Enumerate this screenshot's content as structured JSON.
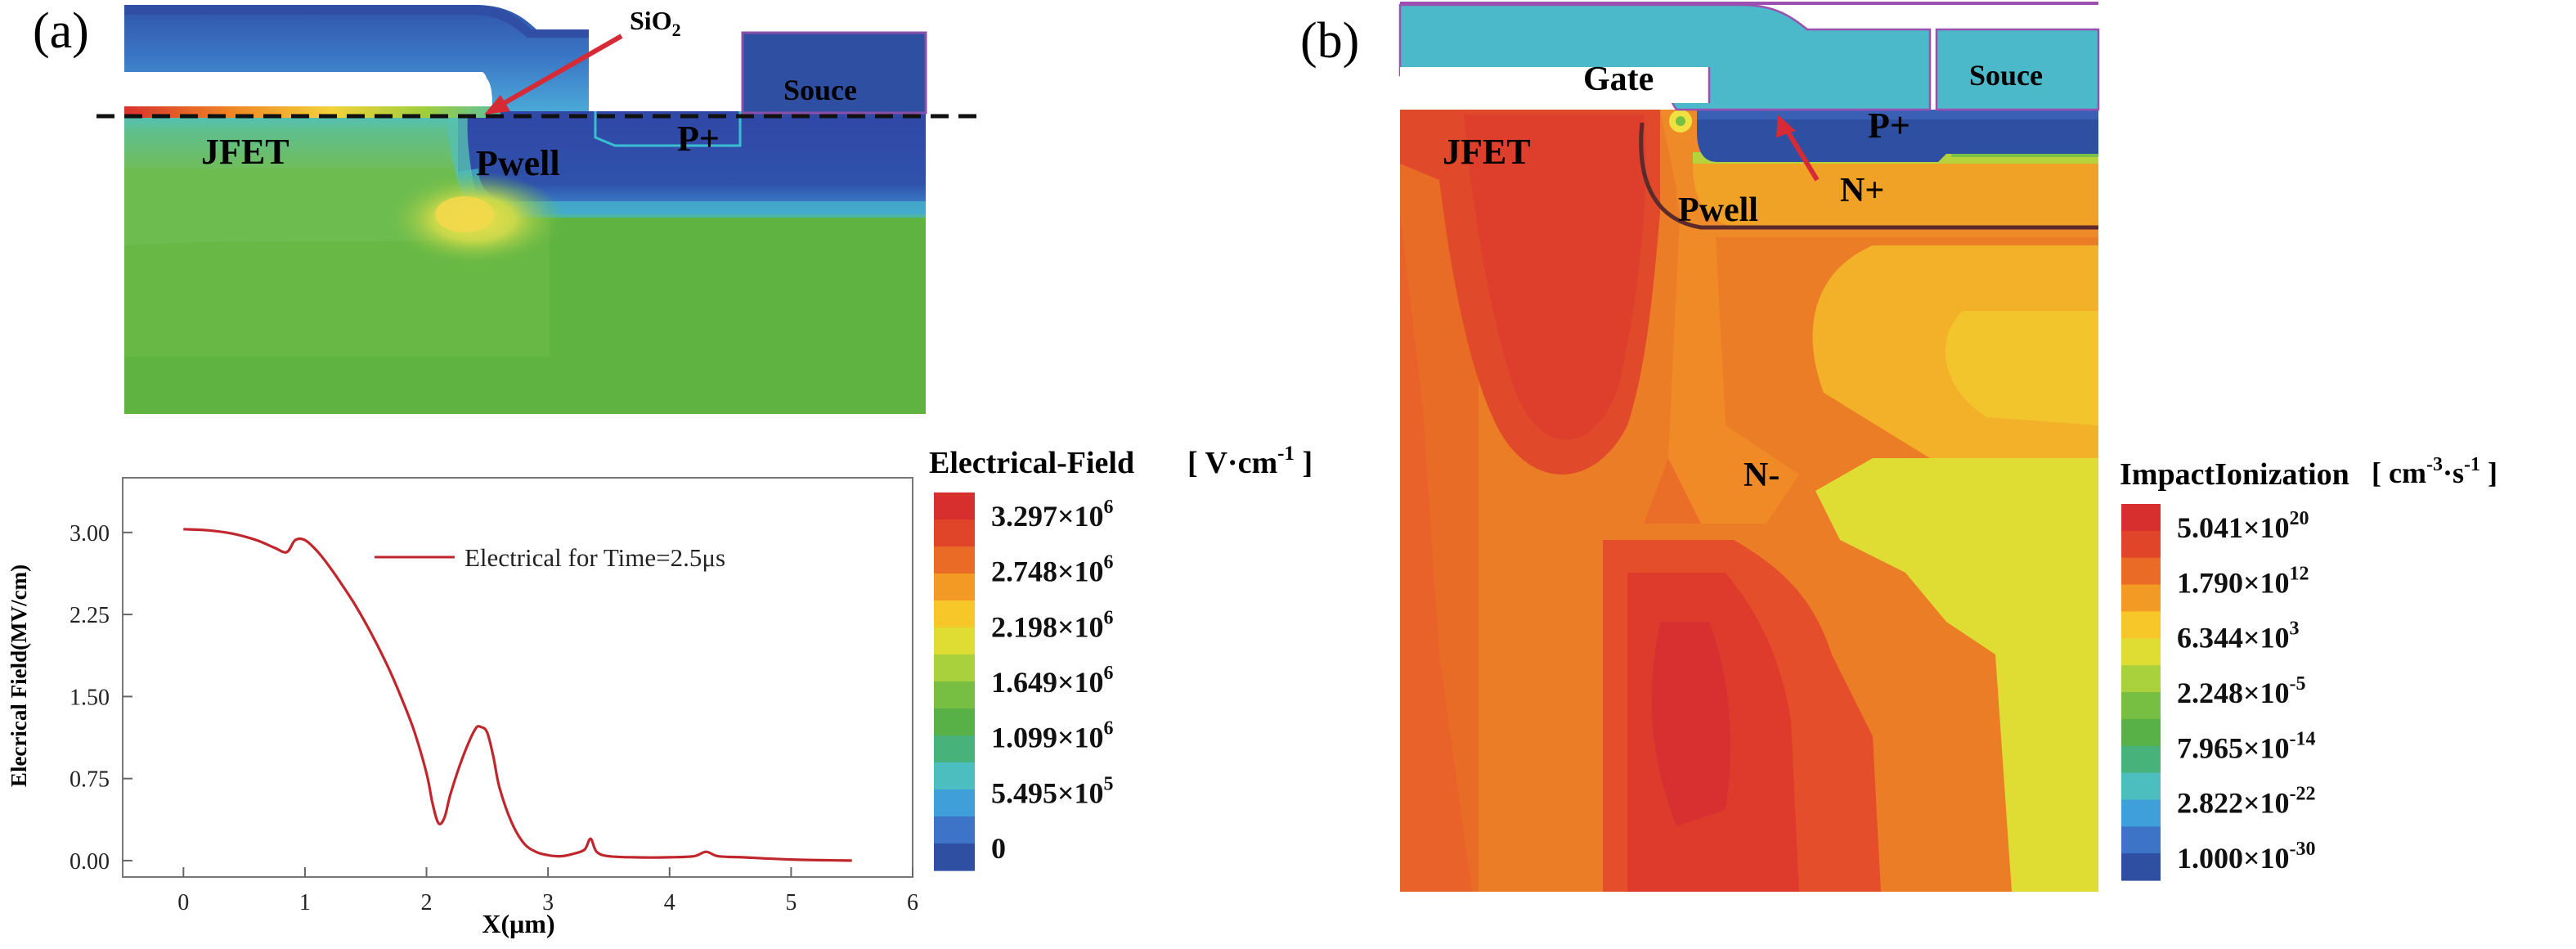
{
  "panel_a": {
    "label": "(a)",
    "regions": {
      "jfet": "JFET",
      "pwell": "Pwell",
      "pplus": "P+",
      "source": "Souce"
    },
    "callout": {
      "base": "SiO",
      "sub": "2"
    },
    "colorbar": {
      "title": "Electrical-Field",
      "unit_prefix": "[ V·cm",
      "unit_exp": "-1",
      "unit_suffix": " ]",
      "ticks": [
        {
          "mant": "3.297×10",
          "exp": "6"
        },
        {
          "mant": "2.748×10",
          "exp": "6"
        },
        {
          "mant": "2.198×10",
          "exp": "6"
        },
        {
          "mant": "1.649×10",
          "exp": "6"
        },
        {
          "mant": "1.099×10",
          "exp": "6"
        },
        {
          "mant": "5.495×10",
          "exp": "5"
        },
        {
          "mant": "0",
          "exp": ""
        }
      ],
      "colors": [
        "#d62f2d",
        "#e0452a",
        "#ea6b26",
        "#f39a24",
        "#f7c72a",
        "#dfdc33",
        "#a9d13b",
        "#76bf42",
        "#58b146",
        "#47b37a",
        "#4dbec0",
        "#3f9fd8",
        "#3d74c7",
        "#2f4fa3"
      ]
    }
  },
  "panel_b": {
    "label": "(b)",
    "regions": {
      "gate": "Gate",
      "source": "Souce",
      "pplus": "P+",
      "jfet": "JFET",
      "pwell": "Pwell",
      "nplus": "N+",
      "nminus": "N-"
    },
    "colorbar": {
      "title": "ImpactIonization",
      "unit_prefix": "[ cm",
      "unit_exp1": "-3",
      "unit_mid": "·s",
      "unit_exp2": "-1",
      "unit_suffix": " ]",
      "ticks": [
        {
          "mant": "5.041×10",
          "exp": "20"
        },
        {
          "mant": "1.790×10",
          "exp": "12"
        },
        {
          "mant": "6.344×10",
          "exp": "3"
        },
        {
          "mant": "2.248×10",
          "exp": "-5"
        },
        {
          "mant": "7.965×10",
          "exp": "-14"
        },
        {
          "mant": "2.822×10",
          "exp": "-22"
        },
        {
          "mant": "1.000×10",
          "exp": "-30"
        }
      ],
      "colors": [
        "#d62f2d",
        "#e0452a",
        "#ea6b26",
        "#f39a24",
        "#f7c72a",
        "#dfdc33",
        "#a9d13b",
        "#76bf42",
        "#58b146",
        "#47b37a",
        "#4dbec0",
        "#3f9fd8",
        "#3d74c7",
        "#2f4fa3"
      ]
    }
  },
  "chart_data": {
    "type": "line",
    "title": "",
    "xlabel": "X(μm)",
    "ylabel": "Elecrical Field(MV/cm)",
    "xlim": [
      -0.5,
      6
    ],
    "ylim": [
      -0.15,
      3.5
    ],
    "xticks": [
      0,
      1,
      2,
      3,
      4,
      5,
      6
    ],
    "xtick_labels": [
      "0",
      "1",
      "2",
      "3",
      "4",
      "5",
      "6"
    ],
    "yticks": [
      0,
      0.75,
      1.5,
      2.25,
      3.0
    ],
    "ytick_labels": [
      "0.00",
      "0.75",
      "1.50",
      "2.25",
      "3.00"
    ],
    "legend": "top-right",
    "series": [
      {
        "name": "Electrical for Time=2.5μs",
        "color": "#c0272d",
        "x": [
          0,
          0.2,
          0.4,
          0.6,
          0.75,
          0.85,
          0.92,
          1.0,
          1.1,
          1.2,
          1.3,
          1.4,
          1.5,
          1.6,
          1.7,
          1.8,
          1.9,
          2.0,
          2.05,
          2.1,
          2.15,
          2.2,
          2.3,
          2.4,
          2.45,
          2.5,
          2.55,
          2.6,
          2.7,
          2.8,
          2.9,
          3.0,
          3.1,
          3.2,
          3.3,
          3.35,
          3.4,
          3.5,
          3.7,
          4.0,
          4.2,
          4.3,
          4.4,
          4.6,
          5.0,
          5.5
        ],
        "y": [
          3.03,
          3.02,
          2.99,
          2.93,
          2.86,
          2.82,
          2.93,
          2.93,
          2.83,
          2.69,
          2.53,
          2.36,
          2.17,
          1.96,
          1.73,
          1.47,
          1.18,
          0.8,
          0.52,
          0.34,
          0.4,
          0.62,
          0.95,
          1.2,
          1.22,
          1.17,
          0.95,
          0.67,
          0.35,
          0.16,
          0.08,
          0.05,
          0.04,
          0.06,
          0.1,
          0.2,
          0.08,
          0.04,
          0.03,
          0.03,
          0.04,
          0.08,
          0.04,
          0.03,
          0.01,
          0.0
        ]
      }
    ]
  }
}
